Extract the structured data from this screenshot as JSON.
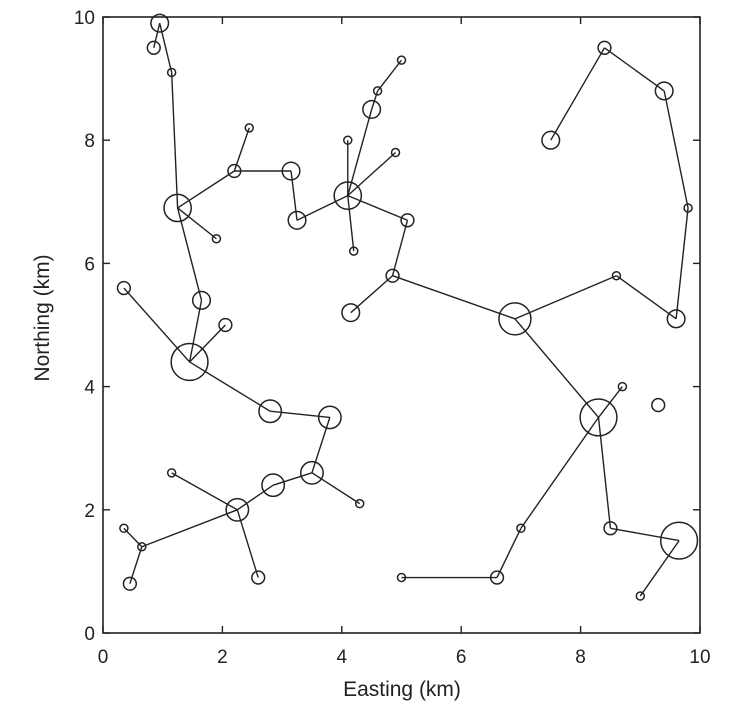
{
  "chart_data": {
    "type": "scatter",
    "title": "",
    "xlabel": "Easting (km)",
    "ylabel": "Northing (km)",
    "xlim": [
      0,
      10
    ],
    "ylim": [
      0,
      10
    ],
    "xticks": [
      "0",
      "2",
      "4",
      "6",
      "8",
      "10"
    ],
    "yticks": [
      "0",
      "2",
      "4",
      "6",
      "8",
      "10"
    ],
    "grid": false,
    "legend": "none",
    "color": "#222222",
    "points": [
      {
        "id": "n1",
        "x": 0.95,
        "y": 9.9,
        "size": 2
      },
      {
        "id": "n2",
        "x": 0.85,
        "y": 9.5,
        "size": 1
      },
      {
        "id": "n3",
        "x": 1.15,
        "y": 9.1,
        "size": 0
      },
      {
        "id": "n4",
        "x": 1.25,
        "y": 6.9,
        "size": 4
      },
      {
        "id": "n5",
        "x": 2.2,
        "y": 7.5,
        "size": 1
      },
      {
        "id": "n6",
        "x": 2.45,
        "y": 8.2,
        "size": 0
      },
      {
        "id": "n7",
        "x": 3.15,
        "y": 7.5,
        "size": 2
      },
      {
        "id": "n8",
        "x": 3.25,
        "y": 6.7,
        "size": 2
      },
      {
        "id": "n9",
        "x": 4.1,
        "y": 7.1,
        "size": 4
      },
      {
        "id": "n10",
        "x": 4.1,
        "y": 8.0,
        "size": 0
      },
      {
        "id": "n11",
        "x": 4.5,
        "y": 8.5,
        "size": 2
      },
      {
        "id": "n12",
        "x": 4.6,
        "y": 8.8,
        "size": 0
      },
      {
        "id": "n13",
        "x": 5.0,
        "y": 9.3,
        "size": 0
      },
      {
        "id": "n14",
        "x": 4.9,
        "y": 7.8,
        "size": 0
      },
      {
        "id": "n15",
        "x": 5.1,
        "y": 6.7,
        "size": 1
      },
      {
        "id": "n16",
        "x": 4.2,
        "y": 6.2,
        "size": 0
      },
      {
        "id": "n17",
        "x": 1.9,
        "y": 6.4,
        "size": 0
      },
      {
        "id": "n18",
        "x": 1.65,
        "y": 5.4,
        "size": 2
      },
      {
        "id": "n19",
        "x": 1.45,
        "y": 4.4,
        "size": 6
      },
      {
        "id": "n20",
        "x": 0.35,
        "y": 5.6,
        "size": 1
      },
      {
        "id": "n21",
        "x": 2.05,
        "y": 5.0,
        "size": 1
      },
      {
        "id": "n22",
        "x": 2.8,
        "y": 3.6,
        "size": 3
      },
      {
        "id": "n23",
        "x": 3.8,
        "y": 3.5,
        "size": 3
      },
      {
        "id": "n24",
        "x": 3.5,
        "y": 2.6,
        "size": 3
      },
      {
        "id": "n25",
        "x": 4.3,
        "y": 2.1,
        "size": 0
      },
      {
        "id": "n26",
        "x": 2.85,
        "y": 2.4,
        "size": 3
      },
      {
        "id": "n27",
        "x": 2.25,
        "y": 2.0,
        "size": 3
      },
      {
        "id": "n28",
        "x": 1.15,
        "y": 2.6,
        "size": 0
      },
      {
        "id": "n29",
        "x": 2.6,
        "y": 0.9,
        "size": 1
      },
      {
        "id": "n30",
        "x": 0.65,
        "y": 1.4,
        "size": 0
      },
      {
        "id": "n31",
        "x": 0.35,
        "y": 1.7,
        "size": 0
      },
      {
        "id": "n32",
        "x": 0.45,
        "y": 0.8,
        "size": 1
      },
      {
        "id": "n33",
        "x": 4.85,
        "y": 5.8,
        "size": 1
      },
      {
        "id": "n34",
        "x": 4.15,
        "y": 5.2,
        "size": 2
      },
      {
        "id": "n35",
        "x": 6.9,
        "y": 5.1,
        "size": 5
      },
      {
        "id": "n36",
        "x": 8.6,
        "y": 5.8,
        "size": 0
      },
      {
        "id": "n37",
        "x": 9.6,
        "y": 5.1,
        "size": 2
      },
      {
        "id": "n38",
        "x": 9.8,
        "y": 6.9,
        "size": 0
      },
      {
        "id": "n39",
        "x": 9.4,
        "y": 8.8,
        "size": 2
      },
      {
        "id": "n40",
        "x": 8.4,
        "y": 9.5,
        "size": 1
      },
      {
        "id": "n41",
        "x": 7.5,
        "y": 8.0,
        "size": 2
      },
      {
        "id": "n42",
        "x": 8.3,
        "y": 3.5,
        "size": 6
      },
      {
        "id": "n43",
        "x": 8.7,
        "y": 4.0,
        "size": 0
      },
      {
        "id": "n44",
        "x": 9.3,
        "y": 3.7,
        "size": 1
      },
      {
        "id": "n45",
        "x": 8.5,
        "y": 1.7,
        "size": 1
      },
      {
        "id": "n46",
        "x": 9.65,
        "y": 1.5,
        "size": 6
      },
      {
        "id": "n47",
        "x": 9.0,
        "y": 0.6,
        "size": 0
      },
      {
        "id": "n48",
        "x": 7.0,
        "y": 1.7,
        "size": 0
      },
      {
        "id": "n49",
        "x": 6.6,
        "y": 0.9,
        "size": 1
      },
      {
        "id": "n50",
        "x": 5.0,
        "y": 0.9,
        "size": 0
      }
    ],
    "edges": [
      [
        "n1",
        "n2"
      ],
      [
        "n1",
        "n3"
      ],
      [
        "n3",
        "n4"
      ],
      [
        "n4",
        "n5"
      ],
      [
        "n5",
        "n6"
      ],
      [
        "n5",
        "n7"
      ],
      [
        "n7",
        "n8"
      ],
      [
        "n8",
        "n9"
      ],
      [
        "n9",
        "n10"
      ],
      [
        "n9",
        "n14"
      ],
      [
        "n9",
        "n15"
      ],
      [
        "n9",
        "n16"
      ],
      [
        "n11",
        "n12"
      ],
      [
        "n12",
        "n13"
      ],
      [
        "n11",
        "n9"
      ],
      [
        "n4",
        "n17"
      ],
      [
        "n4",
        "n18"
      ],
      [
        "n18",
        "n19"
      ],
      [
        "n19",
        "n20"
      ],
      [
        "n19",
        "n21"
      ],
      [
        "n19",
        "n22"
      ],
      [
        "n22",
        "n23"
      ],
      [
        "n23",
        "n24"
      ],
      [
        "n24",
        "n25"
      ],
      [
        "n24",
        "n26"
      ],
      [
        "n26",
        "n27"
      ],
      [
        "n27",
        "n28"
      ],
      [
        "n27",
        "n29"
      ],
      [
        "n27",
        "n30"
      ],
      [
        "n30",
        "n31"
      ],
      [
        "n30",
        "n32"
      ],
      [
        "n33",
        "n34"
      ],
      [
        "n33",
        "n35"
      ],
      [
        "n15",
        "n33"
      ],
      [
        "n35",
        "n36"
      ],
      [
        "n36",
        "n37"
      ],
      [
        "n37",
        "n38"
      ],
      [
        "n38",
        "n39"
      ],
      [
        "n39",
        "n40"
      ],
      [
        "n40",
        "n41"
      ],
      [
        "n35",
        "n42"
      ],
      [
        "n42",
        "n43"
      ],
      [
        "n42",
        "n45"
      ],
      [
        "n45",
        "n46"
      ],
      [
        "n46",
        "n47"
      ],
      [
        "n42",
        "n48"
      ],
      [
        "n48",
        "n49"
      ],
      [
        "n49",
        "n50"
      ]
    ]
  }
}
